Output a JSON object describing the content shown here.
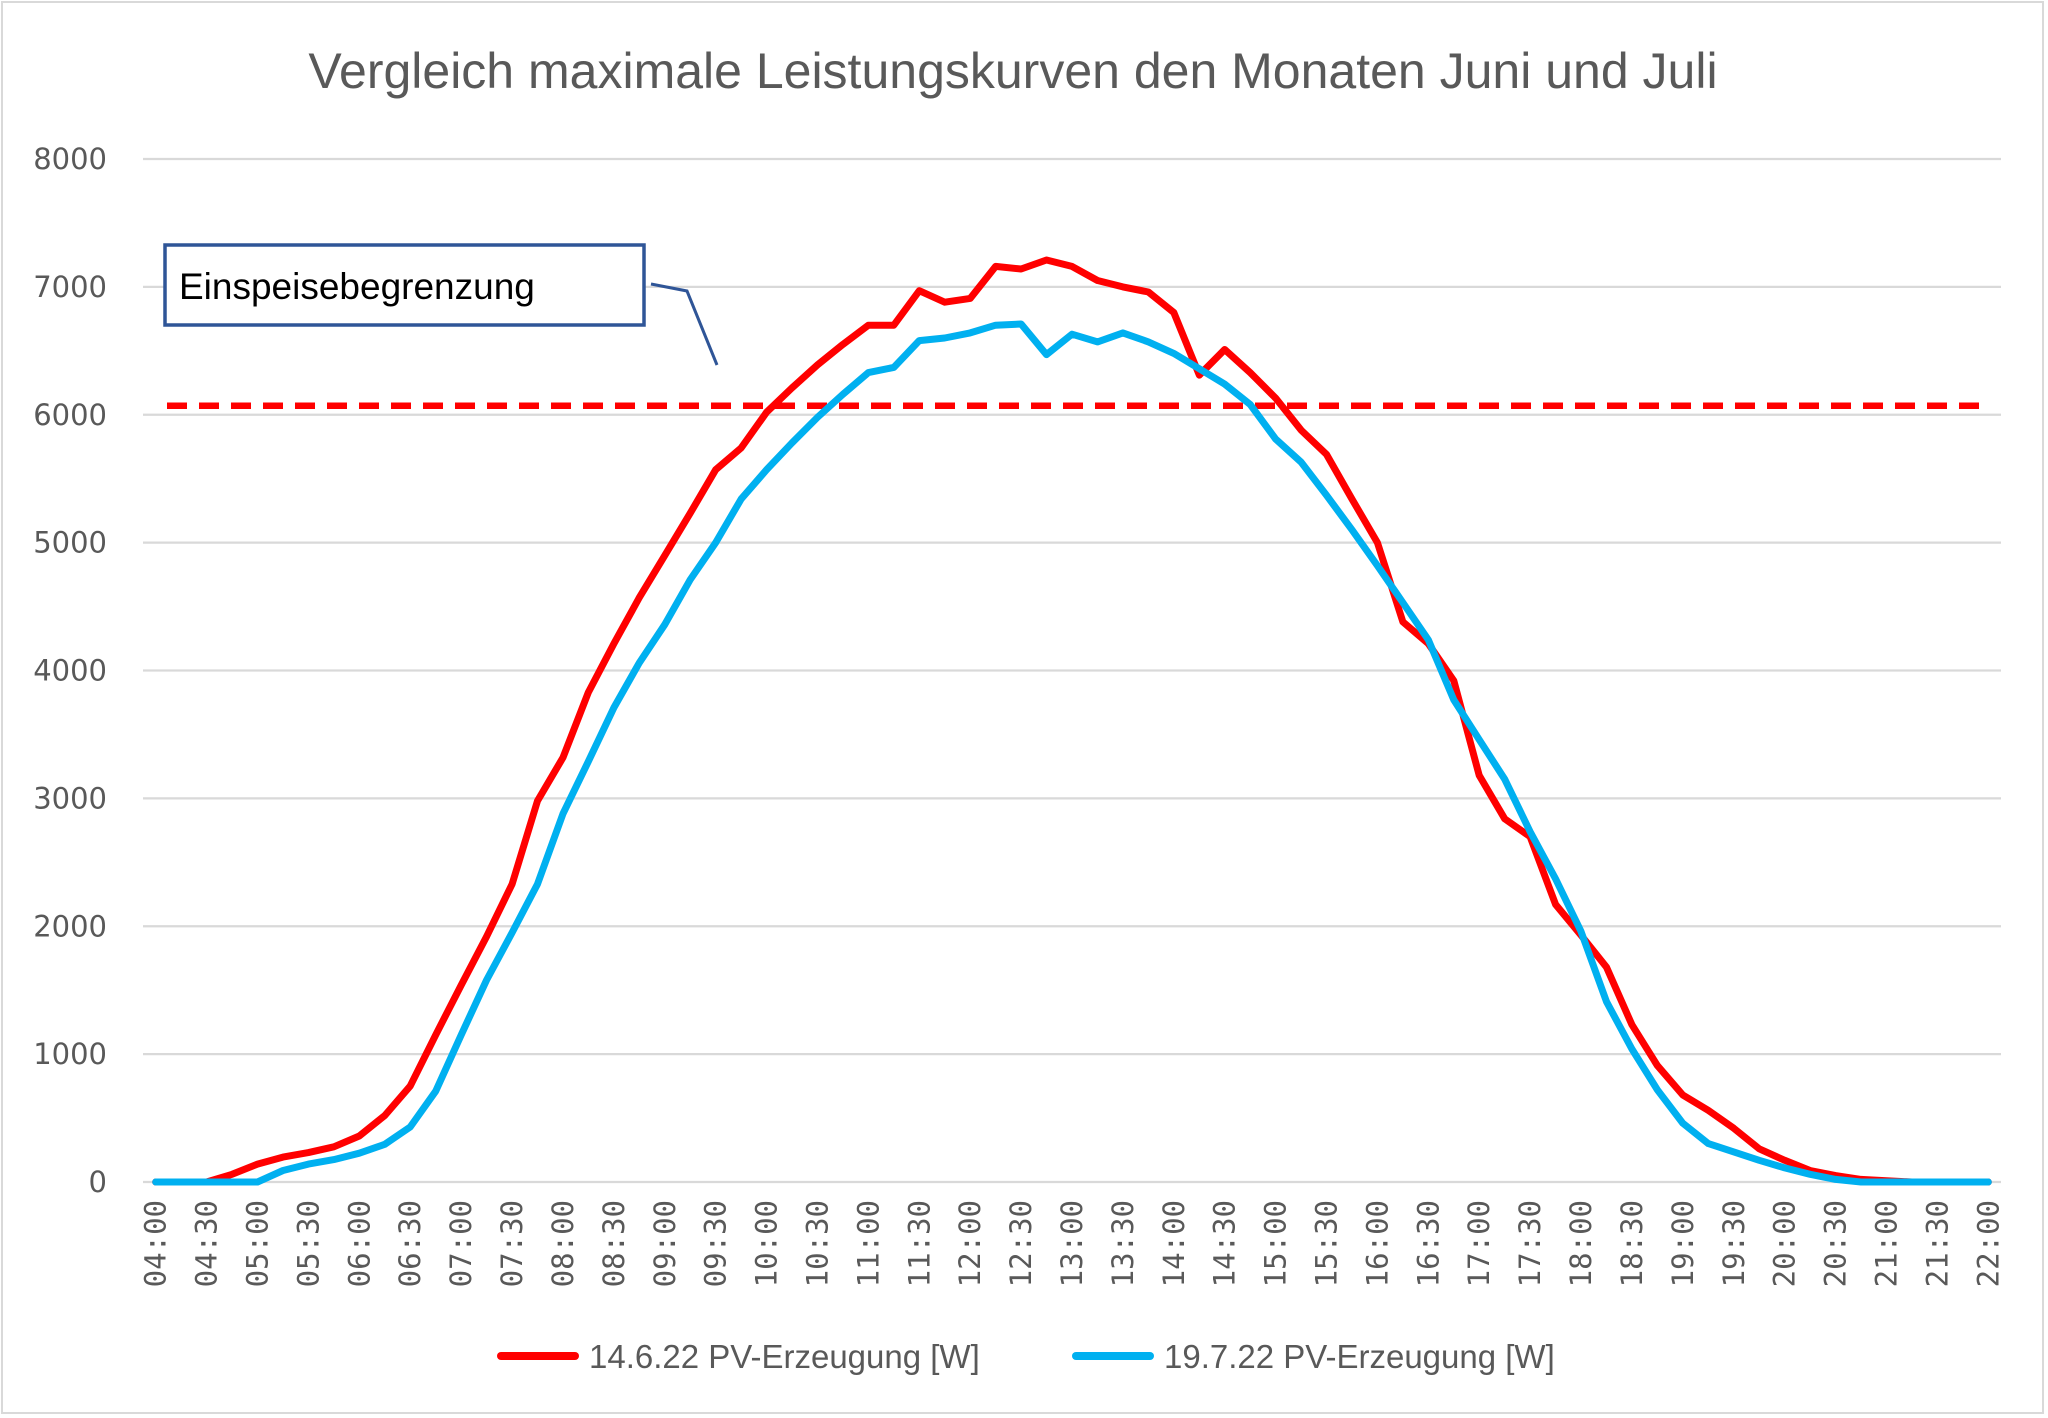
{
  "chart_data": {
    "type": "line",
    "title": "Vergleich maximale Leistungskurven den Monaten Juni und Juli",
    "xlabel": "",
    "ylabel": "",
    "ylim": [
      0,
      8000
    ],
    "y_ticks": [
      "0",
      "1000",
      "2000",
      "3000",
      "4000",
      "5000",
      "6000",
      "7000",
      "8000"
    ],
    "y_tick_values": [
      0,
      1000,
      2000,
      3000,
      4000,
      5000,
      6000,
      7000,
      8000
    ],
    "grid": true,
    "legend_position": "bottom",
    "x": [
      "04:00",
      "04:15",
      "04:30",
      "04:45",
      "05:00",
      "05:15",
      "05:30",
      "05:45",
      "06:00",
      "06:15",
      "06:30",
      "06:45",
      "07:00",
      "07:15",
      "07:30",
      "07:45",
      "08:00",
      "08:15",
      "08:30",
      "08:45",
      "09:00",
      "09:15",
      "09:30",
      "09:45",
      "10:00",
      "10:15",
      "10:30",
      "10:45",
      "11:00",
      "11:15",
      "11:30",
      "11:45",
      "12:00",
      "12:15",
      "12:30",
      "12:45",
      "13:00",
      "13:15",
      "13:30",
      "13:45",
      "14:00",
      "14:15",
      "14:30",
      "14:45",
      "15:00",
      "15:15",
      "15:30",
      "15:45",
      "16:00",
      "16:15",
      "16:30",
      "16:45",
      "17:00",
      "17:15",
      "17:30",
      "17:45",
      "18:00",
      "18:15",
      "18:30",
      "18:45",
      "19:00",
      "19:15",
      "19:30",
      "19:45",
      "20:00",
      "20:15",
      "20:30",
      "20:45",
      "21:00",
      "21:15",
      "21:30",
      "21:45",
      "22:00"
    ],
    "x_tick_labels": [
      "04:00",
      "04:30",
      "05:00",
      "05:30",
      "06:00",
      "06:30",
      "07:00",
      "07:30",
      "08:00",
      "08:30",
      "09:00",
      "09:30",
      "10:00",
      "10:30",
      "11:00",
      "11:30",
      "12:00",
      "12:30",
      "13:00",
      "13:30",
      "14:00",
      "14:30",
      "15:00",
      "15:30",
      "16:00",
      "16:30",
      "17:00",
      "17:30",
      "18:00",
      "18:30",
      "19:00",
      "19:30",
      "20:00",
      "20:30",
      "21:00",
      "21:30",
      "22:00"
    ],
    "series": [
      {
        "name": "14.6.22 PV-Erzeugung [W]",
        "color": "#ff0000",
        "values": [
          0,
          0,
          0,
          60,
          140,
          195,
          230,
          275,
          360,
          520,
          750,
          1150,
          1540,
          1920,
          2330,
          2980,
          3320,
          3830,
          4210,
          4570,
          4900,
          5230,
          5570,
          5740,
          6020,
          6210,
          6390,
          6550,
          6700,
          6700,
          6970,
          6880,
          6910,
          7160,
          7140,
          7210,
          7160,
          7050,
          7000,
          6960,
          6800,
          6310,
          6510,
          6330,
          6130,
          5880,
          5690,
          5340,
          5000,
          4380,
          4210,
          3920,
          3180,
          2840,
          2700,
          2170,
          1930,
          1680,
          1230,
          910,
          680,
          560,
          420,
          260,
          170,
          90,
          50,
          20,
          10,
          0,
          0,
          0,
          0
        ]
      },
      {
        "name": "19.7.22 PV-Erzeugung [W]",
        "color": "#00b0f0",
        "values": [
          0,
          0,
          0,
          0,
          0,
          90,
          140,
          175,
          225,
          295,
          430,
          710,
          1150,
          1580,
          1950,
          2330,
          2880,
          3290,
          3710,
          4060,
          4360,
          4710,
          5000,
          5340,
          5570,
          5780,
          5980,
          6160,
          6330,
          6370,
          6580,
          6600,
          6640,
          6700,
          6710,
          6470,
          6630,
          6570,
          6640,
          6570,
          6480,
          6360,
          6240,
          6080,
          5810,
          5630,
          5370,
          5100,
          4820,
          4530,
          4240,
          3770,
          3460,
          3150,
          2740,
          2370,
          1960,
          1410,
          1040,
          720,
          460,
          300,
          235,
          170,
          110,
          60,
          20,
          0,
          0,
          0,
          0,
          0,
          0
        ]
      }
    ],
    "reference_lines": [
      {
        "name": "Einspeisebegrenzung",
        "value": 6070,
        "color": "#ff0000",
        "style": "dashed"
      }
    ],
    "annotations": [
      {
        "text": "Einspeisebegrenzung",
        "border_color": "#2f5597",
        "points_to": "reference_line"
      }
    ]
  }
}
